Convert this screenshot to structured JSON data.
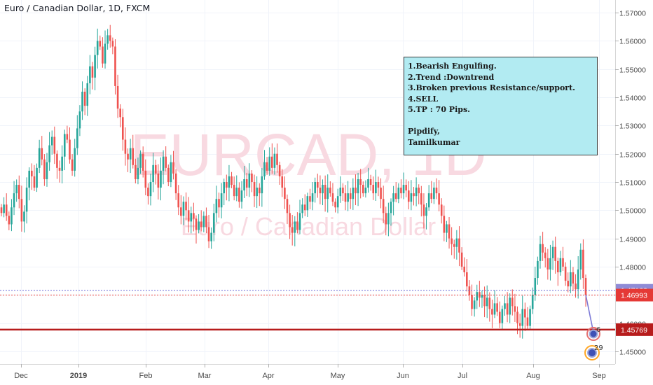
{
  "header": {
    "title": "Euro / Canadian Dollar, 1D, FXCM"
  },
  "watermark": {
    "symbol": "EURCAD, 1D",
    "name": "Euro / Canadian Dollar"
  },
  "note": {
    "lines": [
      "1.Bearish Engulfing.",
      "2.Trend :Downtrend",
      "3.Broken previous Resistance/support.",
      "4.SELL",
      "5.TP : 70 Pips."
    ],
    "signature": [
      "Pipdify,",
      "Tamilkumar"
    ]
  },
  "price_badges": [
    {
      "label": "1.47162",
      "value": 1.47162,
      "bg": "#8f8bd6"
    },
    {
      "label": "1.46993",
      "value": 1.46993,
      "bg": "#e53935"
    },
    {
      "label": "1.45769",
      "value": 1.45769,
      "bg": "#b71c1c"
    }
  ],
  "marker_labels": [
    "6",
    "29"
  ],
  "colors": {
    "up": "#26a69a",
    "down": "#ef5350",
    "support": "#b71c1c",
    "dotted_blue": "#6f6fd8",
    "dotted_red": "#e53935",
    "arrow": "#7b79d6"
  },
  "chart_data": {
    "type": "candlestick",
    "title": "Euro / Canadian Dollar, 1D, FXCM",
    "ylim": [
      1.4455,
      1.5745
    ],
    "y_ticks": [
      1.45,
      1.46,
      1.47,
      1.48,
      1.49,
      1.5,
      1.51,
      1.52,
      1.53,
      1.54,
      1.55,
      1.56,
      1.57
    ],
    "x_ticks": [
      "Dec",
      "2019",
      "Feb",
      "Mar",
      "Apr",
      "May",
      "Jun",
      "Jul",
      "Aug",
      "Sep"
    ],
    "grid": true,
    "horizontal_lines": [
      {
        "value": 1.45769,
        "style": "solid",
        "color": "#b71c1c"
      },
      {
        "value": 1.47162,
        "style": "dotted",
        "color": "#6f6fd8"
      },
      {
        "value": 1.46993,
        "style": "dotted",
        "color": "#e53935"
      }
    ],
    "closes": [
      1.499,
      1.502,
      1.498,
      1.495,
      1.501,
      1.506,
      1.509,
      1.504,
      1.496,
      1.4995,
      1.508,
      1.514,
      1.512,
      1.508,
      1.515,
      1.522,
      1.518,
      1.511,
      1.517,
      1.523,
      1.526,
      1.52,
      1.515,
      1.514,
      1.519,
      1.527,
      1.525,
      1.518,
      1.514,
      1.522,
      1.529,
      1.535,
      1.542,
      1.537,
      1.545,
      1.551,
      1.547,
      1.555,
      1.56,
      1.558,
      1.552,
      1.559,
      1.562,
      1.56,
      1.558,
      1.544,
      1.536,
      1.533,
      1.525,
      1.52,
      1.518,
      1.522,
      1.516,
      1.511,
      1.515,
      1.52,
      1.514,
      1.508,
      1.505,
      1.51,
      1.516,
      1.513,
      1.508,
      1.514,
      1.519,
      1.515,
      1.51,
      1.517,
      1.513,
      1.506,
      1.501,
      1.498,
      1.503,
      1.5,
      1.496,
      1.499,
      1.497,
      1.493,
      1.496,
      1.494,
      1.498,
      1.494,
      1.489,
      1.492,
      1.499,
      1.504,
      1.501,
      1.506,
      1.51,
      1.508,
      1.512,
      1.509,
      1.505,
      1.508,
      1.503,
      1.507,
      1.511,
      1.508,
      1.513,
      1.51,
      1.505,
      1.508,
      1.506,
      1.512,
      1.517,
      1.514,
      1.519,
      1.515,
      1.52,
      1.516,
      1.512,
      1.508,
      1.504,
      1.499,
      1.494,
      1.492,
      1.496,
      1.493,
      1.499,
      1.502,
      1.5,
      1.505,
      1.503,
      1.506,
      1.51,
      1.508,
      1.506,
      1.509,
      1.504,
      1.508,
      1.506,
      1.503,
      1.501,
      1.505,
      1.508,
      1.506,
      1.503,
      1.506,
      1.504,
      1.508,
      1.506,
      1.511,
      1.509,
      1.506,
      1.508,
      1.511,
      1.509,
      1.506,
      1.51,
      1.508,
      1.504,
      1.499,
      1.495,
      1.499,
      1.503,
      1.506,
      1.504,
      1.508,
      1.506,
      1.509,
      1.507,
      1.503,
      1.506,
      1.505,
      1.508,
      1.506,
      1.502,
      1.498,
      1.501,
      1.506,
      1.504,
      1.508,
      1.506,
      1.502,
      1.498,
      1.492,
      1.495,
      1.49,
      1.488,
      1.487,
      1.49,
      1.485,
      1.48,
      1.478,
      1.473,
      1.47,
      1.465,
      1.468,
      1.471,
      1.469,
      1.47,
      1.466,
      1.469,
      1.465,
      1.463,
      1.467,
      1.464,
      1.46,
      1.465,
      1.467,
      1.463,
      1.469,
      1.466,
      1.464,
      1.46,
      1.459,
      1.465,
      1.462,
      1.459,
      1.465,
      1.47,
      1.476,
      1.482,
      1.488,
      1.485,
      1.483,
      1.479,
      1.483,
      1.487,
      1.482,
      1.478,
      1.483,
      1.48,
      1.475,
      1.473,
      1.478,
      1.474,
      1.472,
      1.479,
      1.486,
      1.476,
      1.47
    ]
  }
}
